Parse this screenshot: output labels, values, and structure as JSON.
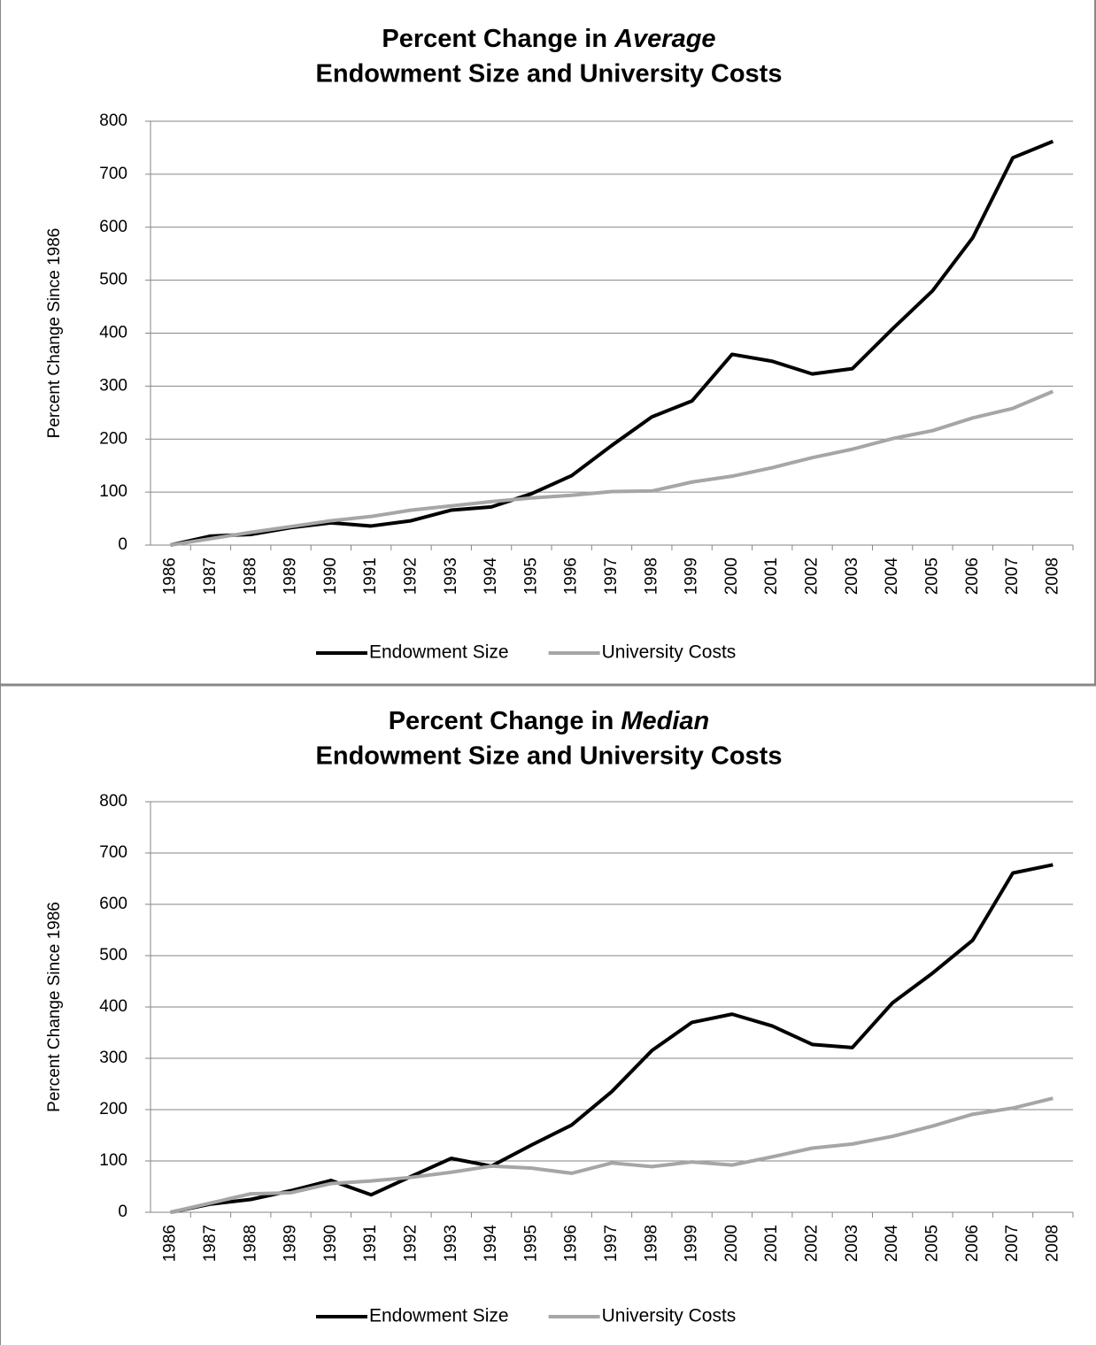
{
  "chart_data": [
    {
      "type": "line",
      "title_lines": [
        "Percent Change in Average",
        "Endowment Size and University Costs"
      ],
      "title_italic": "Average",
      "ylabel": "Percent Change Since 1986",
      "categories": [
        "1986",
        "1987",
        "1988",
        "1989",
        "1990",
        "1991",
        "1992",
        "1993",
        "1994",
        "1995",
        "1996",
        "1997",
        "1998",
        "1999",
        "2000",
        "2001",
        "2002",
        "2003",
        "2004",
        "2005",
        "2006",
        "2007",
        "2008"
      ],
      "series": [
        {
          "name": "Endowment Size",
          "color": "#000000",
          "values": [
            0,
            17,
            20,
            33,
            42,
            36,
            46,
            66,
            72,
            97,
            131,
            188,
            242,
            272,
            360,
            347,
            323,
            333,
            408,
            480,
            580,
            731,
            762
          ]
        },
        {
          "name": "University Costs",
          "color": "#a6a6a6",
          "values": [
            0,
            12,
            24,
            35,
            46,
            54,
            66,
            74,
            82,
            89,
            94,
            101,
            102,
            119,
            130,
            146,
            165,
            181,
            201,
            216,
            240,
            258,
            290
          ]
        }
      ],
      "ylim": [
        0,
        800
      ],
      "yticks": [
        0,
        100,
        200,
        300,
        400,
        500,
        600,
        700,
        800
      ],
      "grid": true,
      "legend": "bottom"
    },
    {
      "type": "line",
      "title_lines": [
        "Percent Change in Median",
        "Endowment Size and University Costs"
      ],
      "title_italic": "Median",
      "ylabel": "Percent Change Since 1986",
      "categories": [
        "1986",
        "1987",
        "1988",
        "1989",
        "1990",
        "1991",
        "1992",
        "1993",
        "1994",
        "1995",
        "1996",
        "1997",
        "1998",
        "1999",
        "2000",
        "2001",
        "2002",
        "2003",
        "2004",
        "2005",
        "2006",
        "2007",
        "2008"
      ],
      "series": [
        {
          "name": "Endowment Size",
          "color": "#000000",
          "values": [
            0,
            16,
            25,
            42,
            62,
            34,
            70,
            105,
            90,
            131,
            170,
            235,
            315,
            370,
            386,
            363,
            327,
            321,
            408,
            466,
            530,
            661,
            677
          ]
        },
        {
          "name": "University Costs",
          "color": "#a6a6a6",
          "values": [
            0,
            18,
            36,
            38,
            56,
            61,
            68,
            78,
            90,
            86,
            76,
            96,
            89,
            98,
            92,
            108,
            125,
            133,
            148,
            168,
            191,
            203,
            222
          ]
        }
      ],
      "ylim": [
        0,
        800
      ],
      "yticks": [
        0,
        100,
        200,
        300,
        400,
        500,
        600,
        700,
        800
      ],
      "grid": true,
      "legend": "bottom"
    }
  ]
}
